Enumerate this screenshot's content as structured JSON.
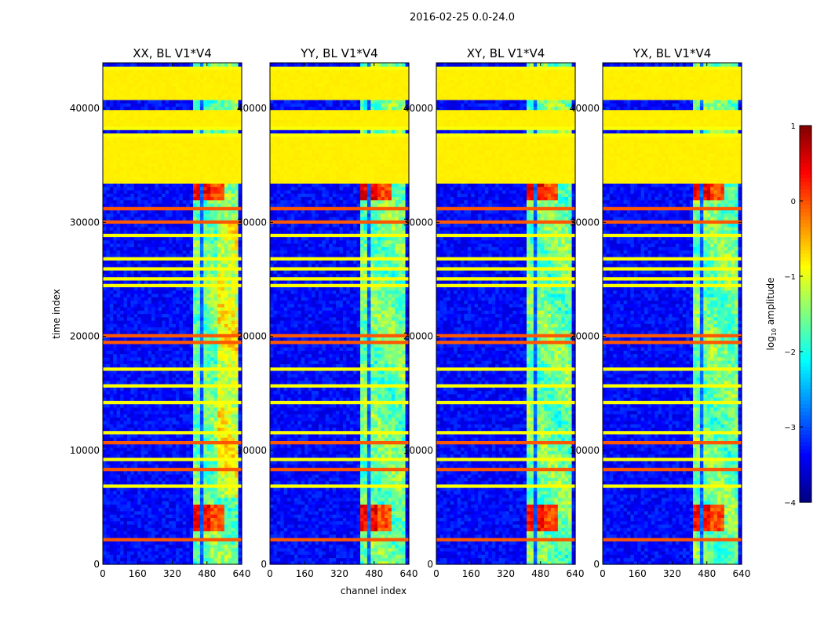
{
  "chart_data": {
    "type": "heatmap",
    "suptitle": "2016-02-25 0.0-24.0",
    "xlabel": "channel index",
    "ylabel": "time index",
    "xlim": [
      0,
      640
    ],
    "ylim": [
      0,
      44000
    ],
    "x_ticks": [
      0,
      160,
      320,
      480,
      640
    ],
    "y_ticks": [
      0,
      10000,
      20000,
      30000,
      40000
    ],
    "panels": [
      {
        "title": "XX, BL V1*V4"
      },
      {
        "title": "YY, BL V1*V4"
      },
      {
        "title": "XY, BL V1*V4"
      },
      {
        "title": "YX, BL V1*V4"
      }
    ],
    "colorbar": {
      "label": "log10 amplitude",
      "range": [
        -4,
        1
      ],
      "ticks": [
        1,
        0,
        -1,
        -2,
        -3,
        -4
      ],
      "tick_labels": [
        "1",
        "0",
        "−1",
        "−2",
        "−3",
        "−4"
      ],
      "colormap": "jet"
    },
    "features": {
      "flagged_time_bands": [
        [
          33500,
          35000
        ],
        [
          35000,
          37500
        ],
        [
          38500,
          39800
        ],
        [
          40800,
          43300
        ]
      ],
      "flag_level": -0.8,
      "active_channel_range": [
        410,
        620
      ],
      "notch_channels": [
        455,
        470
      ],
      "background_level": -3.6,
      "bright_time_ranges": [
        [
          32000,
          33400
        ],
        [
          3000,
          5200
        ]
      ],
      "horizontal_stripe_times": [
        2100,
        5000,
        7000,
        8400,
        9200,
        10800,
        11600,
        14200,
        15800,
        17200,
        18800,
        19500,
        20100,
        24400,
        25100,
        25900,
        26800,
        27600,
        28900,
        30000,
        31200,
        34600,
        37600,
        38200,
        43600
      ]
    }
  }
}
